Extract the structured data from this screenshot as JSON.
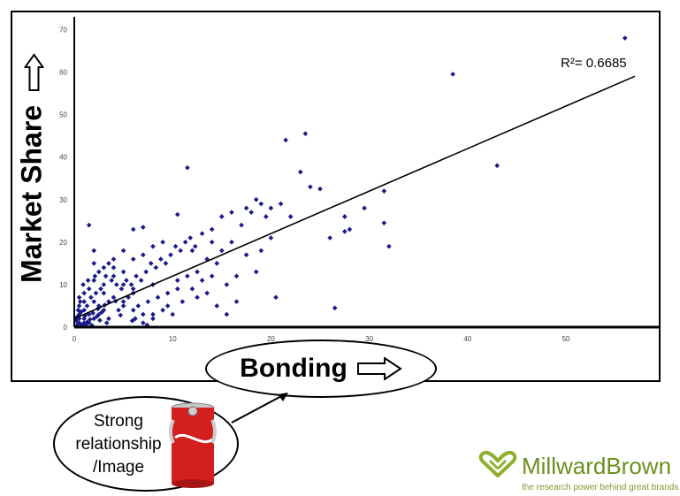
{
  "chart_data": {
    "type": "scatter",
    "title": "",
    "xlabel": "Bonding",
    "ylabel": "Market Share",
    "xlim": [
      0,
      58
    ],
    "ylim": [
      0,
      73
    ],
    "xticks": [
      0,
      10,
      20,
      30,
      40,
      50
    ],
    "yticks": [
      0,
      10,
      20,
      30,
      40,
      50,
      60,
      70
    ],
    "trendline": {
      "x": [
        0,
        57
      ],
      "y": [
        2,
        59
      ],
      "label": "R²= 0.6685"
    },
    "point_color": "#1a1a8c",
    "series": [
      {
        "points": [
          [
            56,
            68
          ],
          [
            38.5,
            59.5
          ],
          [
            43,
            38
          ],
          [
            23.5,
            45.5
          ],
          [
            21.5,
            44
          ],
          [
            25,
            32.5
          ],
          [
            23,
            36.5
          ],
          [
            31.5,
            32
          ],
          [
            29.5,
            28
          ],
          [
            32,
            19
          ],
          [
            31.5,
            24.5
          ],
          [
            27.5,
            26
          ],
          [
            28,
            23
          ],
          [
            27.5,
            22.5
          ],
          [
            26,
            21
          ],
          [
            26.5,
            4.5
          ],
          [
            20.5,
            7
          ],
          [
            11.5,
            37.5
          ],
          [
            10.5,
            26.5
          ],
          [
            7,
            23.5
          ],
          [
            6,
            23
          ],
          [
            1.5,
            24
          ],
          [
            2,
            18
          ],
          [
            2,
            15
          ],
          [
            3,
            14
          ],
          [
            4,
            14
          ],
          [
            5,
            13
          ],
          [
            3,
            10
          ],
          [
            3,
            8
          ],
          [
            4,
            7
          ],
          [
            5,
            6
          ],
          [
            6,
            8
          ],
          [
            5,
            5
          ],
          [
            6,
            4
          ],
          [
            7,
            3
          ],
          [
            8,
            3
          ],
          [
            7,
            1
          ],
          [
            8,
            2
          ],
          [
            2,
            11
          ],
          [
            1.5,
            9
          ],
          [
            1,
            8
          ],
          [
            0.5,
            7
          ],
          [
            0.5,
            5
          ],
          [
            1,
            4
          ],
          [
            0.5,
            3
          ],
          [
            1.5,
            3
          ],
          [
            0.5,
            2
          ],
          [
            1,
            2
          ],
          [
            0.5,
            1
          ],
          [
            1,
            1
          ],
          [
            1.5,
            1
          ],
          [
            2,
            2
          ],
          [
            2.5,
            3
          ],
          [
            3,
            4
          ],
          [
            3.5,
            2
          ],
          [
            2,
            6
          ],
          [
            2.5,
            5
          ],
          [
            1,
            6
          ],
          [
            0.3,
            0.5
          ],
          [
            0.8,
            0.3
          ],
          [
            1.2,
            0.6
          ],
          [
            1.8,
            0.4
          ],
          [
            0.2,
            1.5
          ],
          [
            0.4,
            4
          ],
          [
            0.6,
            6
          ],
          [
            1.3,
            5
          ],
          [
            1.7,
            7
          ],
          [
            2.2,
            8
          ],
          [
            2.7,
            9
          ],
          [
            3.2,
            12
          ],
          [
            3.8,
            11
          ],
          [
            4.3,
            10
          ],
          [
            4.8,
            9
          ],
          [
            5.3,
            11
          ],
          [
            5.8,
            10
          ],
          [
            6.3,
            12
          ],
          [
            6.8,
            11
          ],
          [
            7.3,
            13
          ],
          [
            7.8,
            15
          ],
          [
            8.3,
            14
          ],
          [
            8.8,
            16
          ],
          [
            9.3,
            15
          ],
          [
            9.8,
            17
          ],
          [
            10.3,
            19
          ],
          [
            10.8,
            18
          ],
          [
            11.3,
            20
          ],
          [
            11.8,
            21
          ],
          [
            12.3,
            19
          ],
          [
            13,
            22
          ],
          [
            14,
            20
          ],
          [
            15,
            26
          ],
          [
            16,
            27
          ],
          [
            17,
            24
          ],
          [
            17.5,
            28
          ],
          [
            18,
            27
          ],
          [
            18.5,
            30
          ],
          [
            19,
            29
          ],
          [
            19.5,
            26
          ],
          [
            20,
            28
          ],
          [
            21,
            29
          ],
          [
            15,
            18
          ],
          [
            14,
            12
          ],
          [
            13,
            11
          ],
          [
            12,
            9
          ],
          [
            11,
            6
          ],
          [
            10,
            3
          ],
          [
            9,
            4
          ],
          [
            9.5,
            8
          ],
          [
            10.5,
            11
          ],
          [
            12.5,
            13
          ],
          [
            13.5,
            16
          ],
          [
            14.5,
            15
          ],
          [
            15.5,
            10
          ],
          [
            16.5,
            12
          ],
          [
            17.5,
            17
          ],
          [
            18.5,
            13
          ],
          [
            16,
            20
          ],
          [
            14,
            23
          ],
          [
            12,
            18
          ],
          [
            8,
            10
          ],
          [
            7.5,
            6
          ],
          [
            6.5,
            5
          ],
          [
            5.5,
            7
          ],
          [
            4.5,
            4
          ],
          [
            3.5,
            6
          ],
          [
            2.8,
            3.5
          ],
          [
            2.3,
            2.5
          ],
          [
            1.6,
            1.8
          ],
          [
            1.1,
            2.7
          ],
          [
            0.7,
            3.6
          ],
          [
            0.3,
            2.4
          ],
          [
            5,
            18
          ],
          [
            4,
            16
          ],
          [
            3.5,
            15
          ],
          [
            2.5,
            13
          ],
          [
            6,
            16
          ],
          [
            7,
            17
          ],
          [
            8,
            19
          ],
          [
            9,
            20
          ],
          [
            6,
            9
          ],
          [
            5,
            10
          ],
          [
            4,
            12
          ],
          [
            8.5,
            7
          ],
          [
            9.5,
            5
          ],
          [
            10.5,
            9
          ],
          [
            11.5,
            12
          ],
          [
            12.5,
            7
          ],
          [
            13.5,
            8
          ],
          [
            14.5,
            5
          ],
          [
            15.5,
            3
          ],
          [
            16.5,
            6
          ],
          [
            6.2,
            2
          ],
          [
            7.4,
            0.5
          ],
          [
            3.3,
            1
          ],
          [
            4.7,
            2.8
          ],
          [
            5.9,
            1.5
          ],
          [
            0.9,
            10
          ],
          [
            1.4,
            11
          ],
          [
            2.1,
            12
          ],
          [
            19,
            18
          ],
          [
            20,
            21
          ],
          [
            22,
            26
          ],
          [
            24,
            33
          ],
          [
            2.4,
            4.3
          ],
          [
            3.1,
            5.2
          ],
          [
            4.2,
            6.1
          ],
          [
            1.9,
            3.3
          ],
          [
            0.6,
            0.8
          ],
          [
            1.3,
            1.2
          ],
          [
            2.6,
            1.6
          ]
        ]
      }
    ]
  }
}
